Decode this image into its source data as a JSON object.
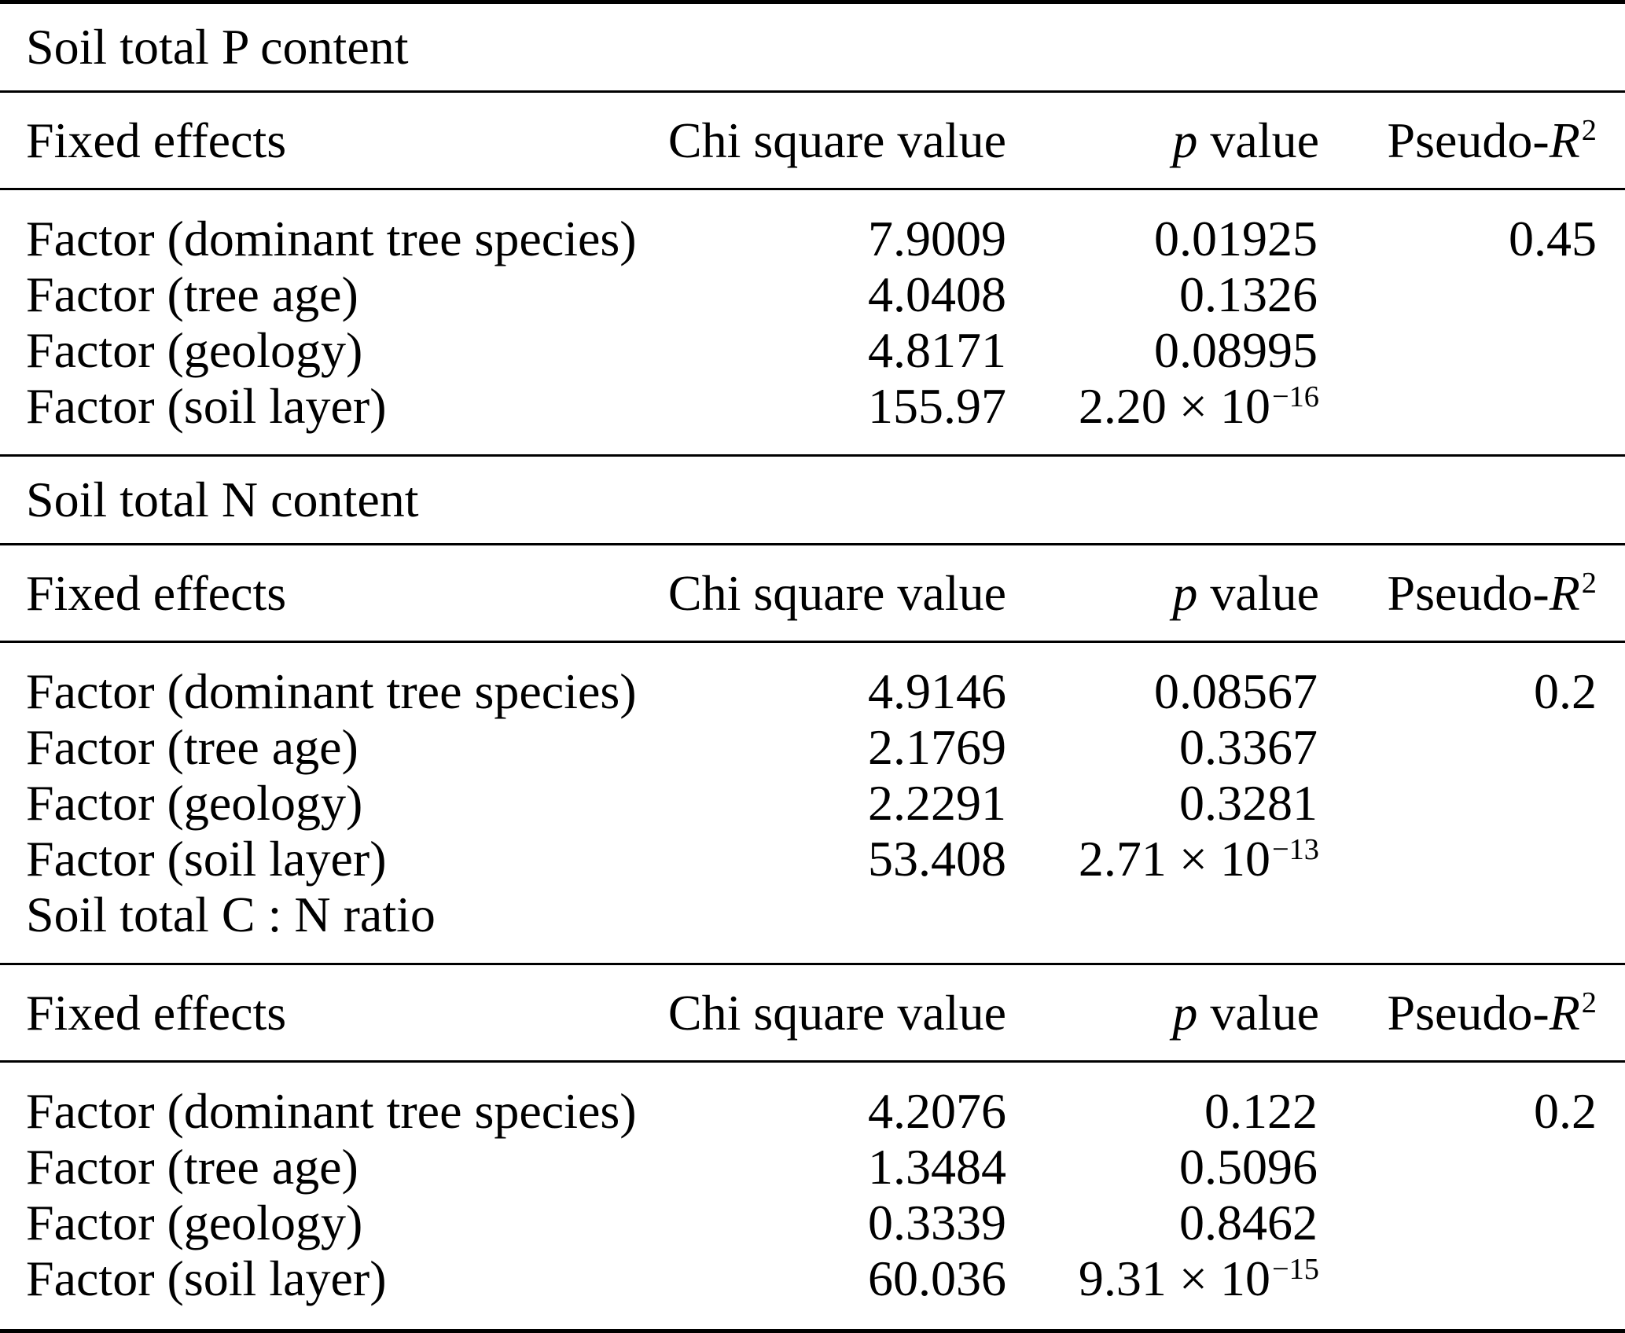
{
  "page": {
    "background_color": "#ffffff",
    "text_color": "#000000"
  },
  "column_headers": {
    "fixed_effects": "Fixed effects",
    "chi_square": "Chi square value",
    "p_italic": "p",
    "p_rest": " value",
    "pseudo_prefix": "Pseudo-",
    "pseudo_r": "R",
    "pseudo_exp": "2"
  },
  "sections": [
    {
      "title": "Soil total P content",
      "rows": [
        {
          "factor": "Factor (dominant tree species)",
          "chi": "7.9009",
          "p": "0.01925",
          "p_exp": "",
          "r2": "0.45"
        },
        {
          "factor": "Factor (tree age)",
          "chi": "4.0408",
          "p": "0.1326",
          "p_exp": "",
          "r2": ""
        },
        {
          "factor": "Factor (geology)",
          "chi": "4.8171",
          "p": "0.08995",
          "p_exp": "",
          "r2": ""
        },
        {
          "factor": "Factor (soil layer)",
          "chi": "155.97",
          "p": "2.20 × 10",
          "p_exp": "−16",
          "r2": ""
        }
      ]
    },
    {
      "title": "Soil total N content",
      "rows": [
        {
          "factor": "Factor (dominant tree species)",
          "chi": "4.9146",
          "p": "0.08567",
          "p_exp": "",
          "r2": "0.2"
        },
        {
          "factor": "Factor (tree age)",
          "chi": "2.1769",
          "p": "0.3367",
          "p_exp": "",
          "r2": ""
        },
        {
          "factor": "Factor (geology)",
          "chi": "2.2291",
          "p": "0.3281",
          "p_exp": "",
          "r2": ""
        },
        {
          "factor": "Factor (soil layer)",
          "chi": "53.408",
          "p": "2.71 × 10",
          "p_exp": "−13",
          "r2": ""
        }
      ],
      "trailing_title": "Soil total C : N ratio"
    },
    {
      "rows": [
        {
          "factor": "Factor (dominant tree species)",
          "chi": "4.2076",
          "p": "0.122",
          "p_exp": "",
          "r2": "0.2"
        },
        {
          "factor": "Factor (tree age)",
          "chi": "1.3484",
          "p": "0.5096",
          "p_exp": "",
          "r2": ""
        },
        {
          "factor": "Factor (geology)",
          "chi": "0.3339",
          "p": "0.8462",
          "p_exp": "",
          "r2": ""
        },
        {
          "factor": "Factor (soil layer)",
          "chi": "60.036",
          "p": "9.31 × 10",
          "p_exp": "−15",
          "r2": ""
        }
      ]
    }
  ]
}
